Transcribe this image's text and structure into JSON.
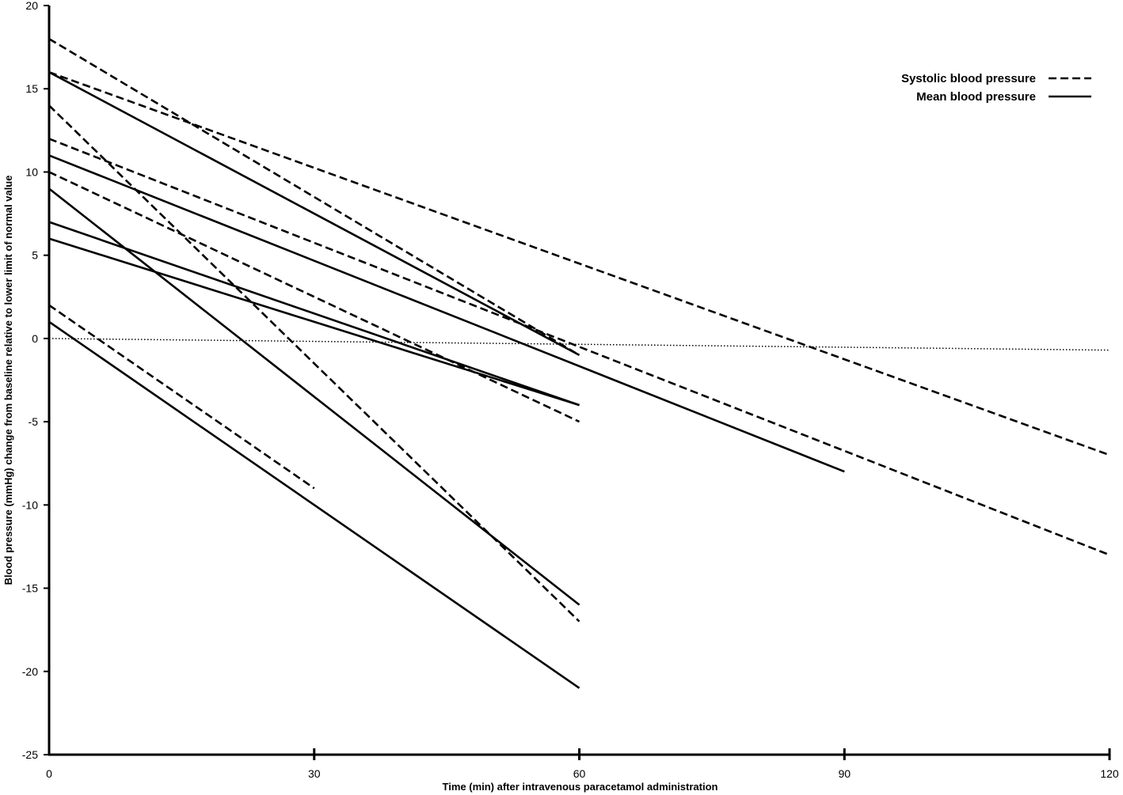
{
  "chart_data": {
    "type": "line",
    "title": "",
    "xlabel": "Time  (min)  after  intravenous  paracetamol  administration",
    "ylabel": "Blood pressure (mmHg)  change from baseline relative to lower  limit  of normal value",
    "xlim": [
      0,
      120
    ],
    "ylim": [
      -25,
      20
    ],
    "x_ticks": [
      0,
      30,
      60,
      90,
      120
    ],
    "y_ticks": [
      20,
      15,
      10,
      5,
      0,
      -5,
      -10,
      -15,
      -20,
      -25
    ],
    "x_tick_labels": [
      "0",
      "30",
      "60",
      "90",
      "120"
    ],
    "y_tick_labels": [
      "20",
      "15",
      "10",
      "5",
      "0",
      "-5",
      "-10",
      "-15",
      "-20",
      "-25"
    ],
    "grid": false,
    "legend_position": "top-right",
    "legend": [
      {
        "label": "Systolic blood pressure",
        "style": "dashed"
      },
      {
        "label": "Mean blood pressure",
        "style": "solid"
      }
    ],
    "reference_line": {
      "style": "dotted",
      "points": [
        [
          0,
          0
        ],
        [
          120,
          -0.7
        ]
      ]
    },
    "series": [
      {
        "group": "Systolic blood pressure",
        "style": "dashed",
        "points": [
          [
            0,
            18
          ],
          [
            60,
            -1
          ]
        ]
      },
      {
        "group": "Systolic blood pressure",
        "style": "dashed",
        "points": [
          [
            0,
            16
          ],
          [
            120,
            -7
          ]
        ]
      },
      {
        "group": "Systolic blood pressure",
        "style": "dashed",
        "points": [
          [
            0,
            14
          ],
          [
            60,
            -17
          ]
        ]
      },
      {
        "group": "Systolic blood pressure",
        "style": "dashed",
        "points": [
          [
            0,
            12
          ],
          [
            120,
            -13
          ]
        ]
      },
      {
        "group": "Systolic blood pressure",
        "style": "dashed",
        "points": [
          [
            0,
            10
          ],
          [
            60,
            -5
          ]
        ]
      },
      {
        "group": "Systolic blood pressure",
        "style": "dashed",
        "points": [
          [
            0,
            2
          ],
          [
            30,
            -9
          ]
        ]
      },
      {
        "group": "Mean blood pressure",
        "style": "solid",
        "points": [
          [
            0,
            16
          ],
          [
            60,
            -1
          ]
        ]
      },
      {
        "group": "Mean blood pressure",
        "style": "solid",
        "points": [
          [
            0,
            11
          ],
          [
            90,
            -8
          ]
        ]
      },
      {
        "group": "Mean blood pressure",
        "style": "solid",
        "points": [
          [
            0,
            9
          ],
          [
            60,
            -16
          ]
        ]
      },
      {
        "group": "Mean blood pressure",
        "style": "solid",
        "points": [
          [
            0,
            7
          ],
          [
            60,
            -4
          ]
        ]
      },
      {
        "group": "Mean blood pressure",
        "style": "solid",
        "points": [
          [
            0,
            6
          ],
          [
            60,
            -4
          ]
        ]
      },
      {
        "group": "Mean blood pressure",
        "style": "solid",
        "points": [
          [
            0,
            1
          ],
          [
            60,
            -21
          ]
        ]
      }
    ],
    "colors": {
      "line": "#000000",
      "background": "#ffffff"
    }
  }
}
